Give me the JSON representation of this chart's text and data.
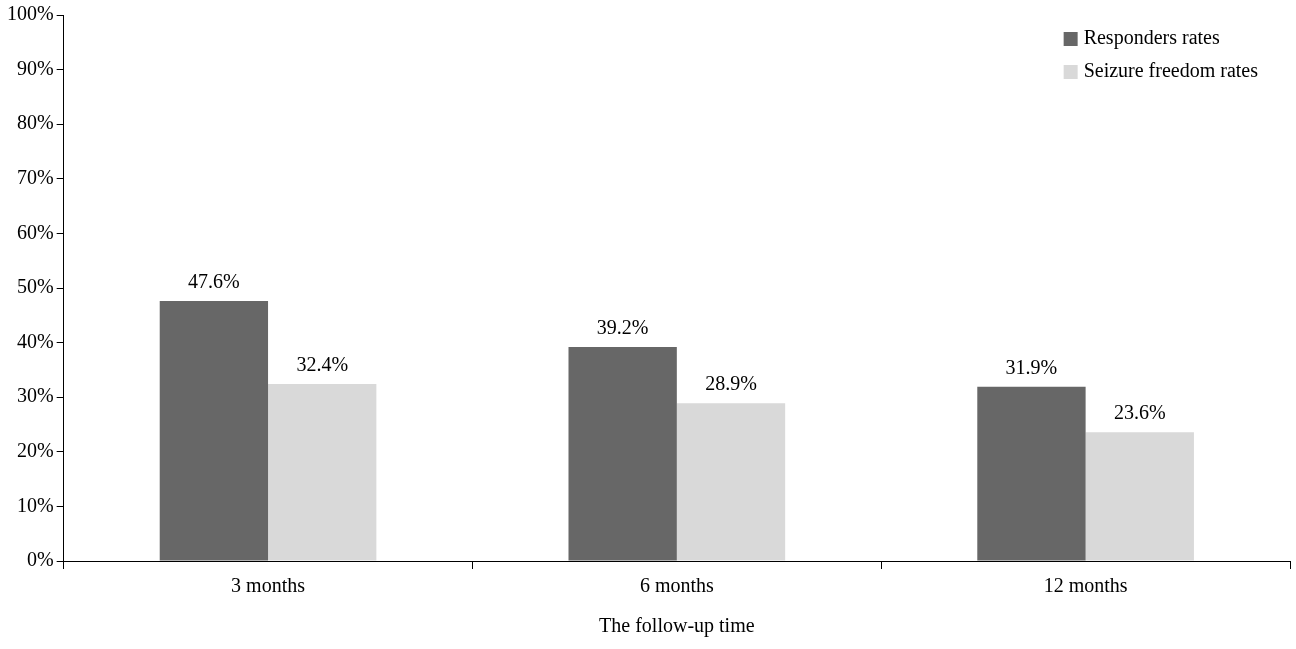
{
  "chart_data": {
    "type": "bar",
    "xlabel": "The follow-up time",
    "categories": [
      "3 months",
      "6 months",
      "12 months"
    ],
    "series": [
      {
        "name": "Responders rates",
        "color": "#676767",
        "values": [
          47.6,
          39.2,
          31.9
        ],
        "value_labels": [
          "47.6%",
          "39.2%",
          "31.9%"
        ]
      },
      {
        "name": "Seizure freedom rates",
        "color": "#d9d9d9",
        "values": [
          32.4,
          28.9,
          23.6
        ],
        "value_labels": [
          "32.4%",
          "28.9%",
          "23.6%"
        ]
      }
    ],
    "ylim": [
      0,
      100
    ],
    "yticks": [
      {
        "value": 0,
        "label": "0%"
      },
      {
        "value": 10,
        "label": "10%"
      },
      {
        "value": 20,
        "label": "20%"
      },
      {
        "value": 30,
        "label": "30%"
      },
      {
        "value": 40,
        "label": "40%"
      },
      {
        "value": 50,
        "label": "50%"
      },
      {
        "value": 60,
        "label": "60%"
      },
      {
        "value": 70,
        "label": "70%"
      },
      {
        "value": 80,
        "label": "80%"
      },
      {
        "value": 90,
        "label": "90%"
      },
      {
        "value": 100,
        "label": "100%"
      }
    ],
    "grid": false,
    "legend": "top right"
  }
}
